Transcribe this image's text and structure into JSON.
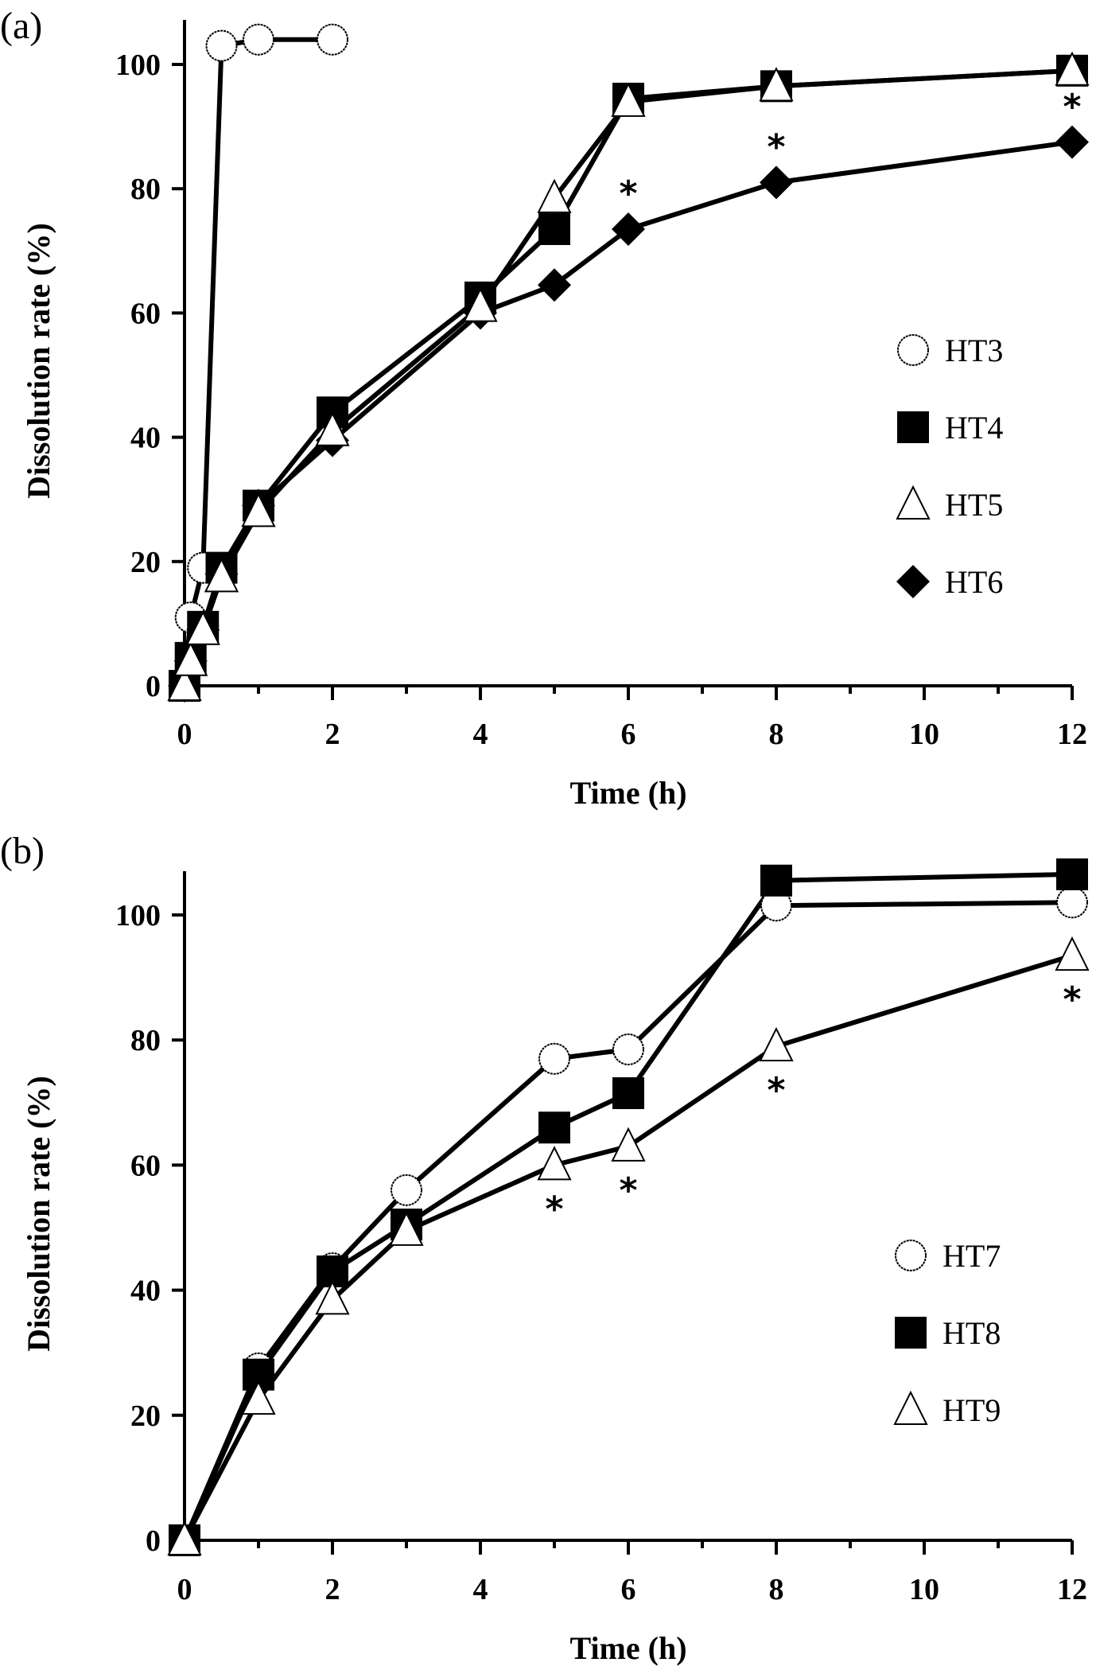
{
  "chart_data": [
    {
      "type": "line",
      "panel_label": "(a)",
      "title": "",
      "xlabel": "Time (h)",
      "ylabel": "Dissolution rate (%)",
      "xlim": [
        0,
        12
      ],
      "ylim": [
        0,
        107
      ],
      "xticks": [
        0,
        2,
        4,
        6,
        8,
        10,
        12
      ],
      "xminor_ticks": [
        1,
        3,
        5,
        7,
        9,
        11
      ],
      "yticks": [
        0,
        20,
        40,
        60,
        80,
        100
      ],
      "grid": false,
      "legend_position": "center-right",
      "series": [
        {
          "name": "HT3",
          "marker": "open-circle",
          "x": [
            0,
            0.083,
            0.25,
            0.5,
            1,
            2
          ],
          "y": [
            0,
            11,
            19,
            103,
            104,
            104
          ]
        },
        {
          "name": "HT4",
          "marker": "filled-square",
          "x": [
            0,
            0.083,
            0.25,
            0.5,
            1,
            2,
            4,
            5,
            6,
            8,
            12
          ],
          "y": [
            0,
            4.5,
            9.5,
            19,
            29,
            44,
            62.5,
            73.5,
            94.5,
            96.5,
            99
          ]
        },
        {
          "name": "HT5",
          "marker": "open-triangle",
          "x": [
            0,
            0.083,
            0.25,
            0.5,
            1,
            2,
            4,
            5,
            6,
            8,
            12
          ],
          "y": [
            0,
            4,
            9,
            17.5,
            28,
            41,
            61,
            78.5,
            94,
            96.5,
            99
          ]
        },
        {
          "name": "HT6",
          "marker": "filled-diamond",
          "x": [
            0,
            0.083,
            0.25,
            0.5,
            1,
            2,
            4,
            5,
            6,
            8,
            12
          ],
          "y": [
            0,
            4,
            9,
            18,
            29,
            39.5,
            60,
            64.5,
            73.5,
            81,
            87.5
          ]
        }
      ],
      "annotations": [
        {
          "text": "*",
          "x": 6,
          "y": 73.5,
          "series": "HT6"
        },
        {
          "text": "*",
          "x": 8,
          "y": 81,
          "series": "HT6"
        },
        {
          "text": "*",
          "x": 12,
          "y": 99,
          "series": "HT4/HT5 vs HT6"
        }
      ]
    },
    {
      "type": "line",
      "panel_label": "(b)",
      "title": "",
      "xlabel": "Time (h)",
      "ylabel": "Dissolution rate (%)",
      "xlim": [
        0,
        12
      ],
      "ylim": [
        0,
        107
      ],
      "xticks": [
        0,
        2,
        4,
        6,
        8,
        10,
        12
      ],
      "xminor_ticks": [
        1,
        3,
        5,
        7,
        9,
        11
      ],
      "yticks": [
        0,
        20,
        40,
        60,
        80,
        100
      ],
      "grid": false,
      "legend_position": "bottom-right",
      "series": [
        {
          "name": "HT7",
          "marker": "open-circle",
          "x": [
            0,
            1,
            2,
            3,
            5,
            6,
            8,
            12
          ],
          "y": [
            0,
            27.5,
            43.5,
            56,
            77,
            78.5,
            101.5,
            102
          ]
        },
        {
          "name": "HT8",
          "marker": "filled-square",
          "x": [
            0,
            1,
            2,
            3,
            5,
            6,
            8,
            12
          ],
          "y": [
            0,
            26.5,
            43,
            50.5,
            66,
            71.5,
            105.5,
            106.5
          ]
        },
        {
          "name": "HT9",
          "marker": "open-triangle",
          "x": [
            0,
            1,
            2,
            3,
            5,
            6,
            8,
            12
          ],
          "y": [
            0,
            22.5,
            38.5,
            49.5,
            60,
            63,
            79,
            93.5
          ]
        }
      ],
      "annotations": [
        {
          "text": "*",
          "x": 5,
          "y": 60,
          "series": "HT9"
        },
        {
          "text": "*",
          "x": 6,
          "y": 63,
          "series": "HT9"
        },
        {
          "text": "*",
          "x": 8,
          "y": 79,
          "series": "HT9"
        },
        {
          "text": "*",
          "x": 12,
          "y": 93.5,
          "series": "HT9"
        }
      ]
    }
  ]
}
